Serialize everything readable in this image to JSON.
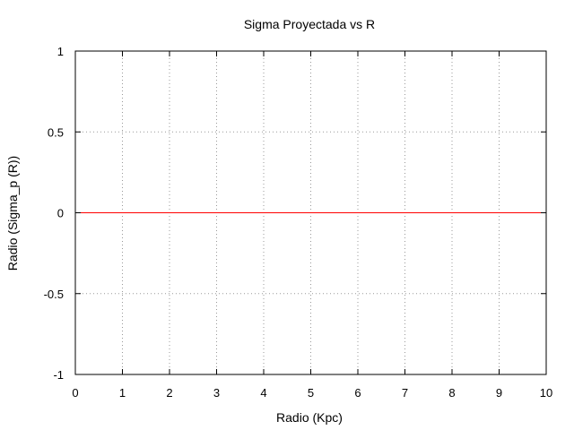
{
  "chart_data": {
    "type": "line",
    "title": "Sigma Proyectada vs R",
    "xlabel": "Radio (Kpc)",
    "ylabel": "Radio (Sigma_p (R))",
    "xlim": [
      0,
      10
    ],
    "ylim": [
      -1,
      1
    ],
    "xticks": [
      "0",
      "1",
      "2",
      "3",
      "4",
      "5",
      "6",
      "7",
      "8",
      "9",
      "10"
    ],
    "yticks": [
      "1",
      "0.5",
      "0",
      "-0.5",
      "-1"
    ],
    "grid": true,
    "series": [
      {
        "color": "#ff0000",
        "x": [
          0,
          10
        ],
        "y": [
          0,
          0
        ]
      }
    ]
  }
}
